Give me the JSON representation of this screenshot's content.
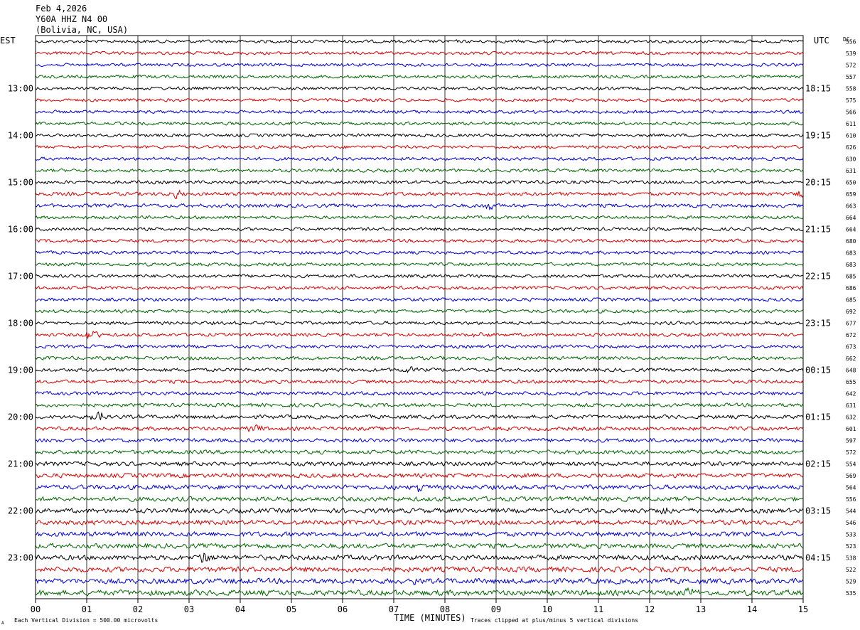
{
  "header": {
    "date": "Feb 4,2026",
    "station": "Y60A HHZ N4 00",
    "location": "(Bolivia, NC, USA)"
  },
  "labels": {
    "left_tz": "EST",
    "right_tz": "UTC",
    "dc_header": "DC",
    "xlabel": "TIME (MINUTES)",
    "scale_note": "Each Vertical Division =  500.00 microvolts",
    "clip_note": "Traces clipped at plus/minus 5 vertical divisions",
    "corner_mark": "A"
  },
  "chart_data": {
    "type": "line",
    "title": "Y60A HHZ N4 00",
    "xlabel": "TIME (MINUTES)",
    "xlim": [
      0,
      15
    ],
    "x_ticks": [
      "00",
      "01",
      "02",
      "03",
      "04",
      "05",
      "06",
      "07",
      "08",
      "09",
      "10",
      "11",
      "12",
      "13",
      "14",
      "15"
    ],
    "trace_colors": [
      "#000000",
      "#dd0000",
      "#0000dd",
      "#006600"
    ],
    "left_time_labels": [
      {
        "row": 4,
        "label": "13:00"
      },
      {
        "row": 8,
        "label": "14:00"
      },
      {
        "row": 12,
        "label": "15:00"
      },
      {
        "row": 16,
        "label": "16:00"
      },
      {
        "row": 20,
        "label": "17:00"
      },
      {
        "row": 24,
        "label": "18:00"
      },
      {
        "row": 28,
        "label": "19:00"
      },
      {
        "row": 32,
        "label": "20:00"
      },
      {
        "row": 36,
        "label": "21:00"
      },
      {
        "row": 40,
        "label": "22:00"
      },
      {
        "row": 44,
        "label": "23:00"
      }
    ],
    "right_time_labels": [
      {
        "row": 4,
        "label": "18:15"
      },
      {
        "row": 8,
        "label": "19:15"
      },
      {
        "row": 12,
        "label": "20:15"
      },
      {
        "row": 16,
        "label": "21:15"
      },
      {
        "row": 20,
        "label": "22:15"
      },
      {
        "row": 24,
        "label": "23:15"
      },
      {
        "row": 28,
        "label": "00:15"
      },
      {
        "row": 32,
        "label": "01:15"
      },
      {
        "row": 36,
        "label": "02:15"
      },
      {
        "row": 40,
        "label": "03:15"
      },
      {
        "row": 44,
        "label": "04:15"
      }
    ],
    "dc_offsets": [
      "556",
      "539",
      "572",
      "557",
      "558",
      "575",
      "566",
      "611",
      "610",
      "626",
      "630",
      "631",
      "650",
      "659",
      "663",
      "664",
      "664",
      "680",
      "683",
      "683",
      "685",
      "686",
      "685",
      "692",
      "677",
      "672",
      "673",
      "662",
      "648",
      "655",
      "642",
      "631",
      "632",
      "601",
      "597",
      "572",
      "554",
      "569",
      "564",
      "556",
      "544",
      "546",
      "533",
      "523",
      "538",
      "522",
      "529",
      "535"
    ],
    "amplitude_by_row": [
      2.6,
      2.6,
      2.6,
      2.6,
      2.6,
      2.6,
      2.6,
      2.6,
      2.6,
      2.6,
      2.7,
      2.7,
      2.8,
      3.0,
      3.0,
      2.7,
      2.7,
      2.7,
      2.7,
      2.7,
      2.8,
      2.8,
      2.8,
      2.8,
      2.8,
      2.8,
      2.8,
      2.9,
      3.0,
      3.0,
      3.0,
      3.0,
      3.2,
      3.2,
      3.2,
      3.3,
      3.5,
      3.6,
      3.8,
      3.8,
      3.8,
      3.9,
      4.0,
      4.0,
      4.2,
      4.3,
      4.4,
      4.6
    ],
    "events": [
      {
        "row": 13,
        "minute": 2.75,
        "amp": 6
      },
      {
        "row": 13,
        "minute": 14.95,
        "amp": 7
      },
      {
        "row": 14,
        "minute": 8.9,
        "amp": 5
      },
      {
        "row": 25,
        "minute": 1.1,
        "amp": 11
      },
      {
        "row": 25,
        "minute": 8.7,
        "amp": 5
      },
      {
        "row": 28,
        "minute": 7.3,
        "amp": 5
      },
      {
        "row": 32,
        "minute": 1.2,
        "amp": 9
      },
      {
        "row": 33,
        "minute": 4.3,
        "amp": 6
      },
      {
        "row": 38,
        "minute": 7.55,
        "amp": 7
      },
      {
        "row": 40,
        "minute": 12.3,
        "amp": 7
      },
      {
        "row": 44,
        "minute": 3.3,
        "amp": 7
      },
      {
        "row": 46,
        "minute": 7.4,
        "amp": 6
      },
      {
        "row": 47,
        "minute": 12.8,
        "amp": 6
      }
    ]
  }
}
